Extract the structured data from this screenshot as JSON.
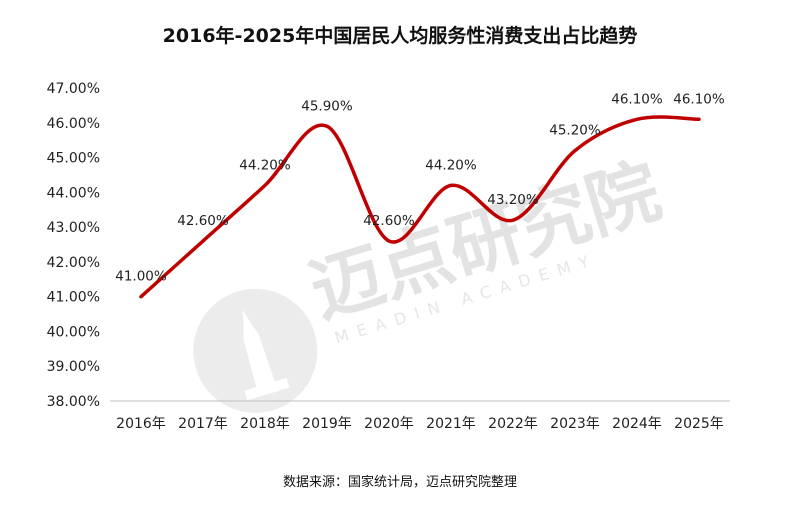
{
  "chart_data": {
    "type": "line",
    "title": "2016年-2025年中国居民人均服务性消费支出占比趋势",
    "categories": [
      "2016年",
      "2017年",
      "2018年",
      "2019年",
      "2020年",
      "2021年",
      "2022年",
      "2023年",
      "2024年",
      "2025年"
    ],
    "series": [
      {
        "values": [
          41.0,
          42.6,
          44.2,
          45.9,
          42.6,
          44.2,
          43.2,
          45.2,
          46.1,
          46.1
        ],
        "labels": [
          "41.00%",
          "42.60%",
          "44.20%",
          "45.90%",
          "42.60%",
          "44.20%",
          "43.20%",
          "45.20%",
          "46.10%",
          "46.10%"
        ],
        "color": "#c00000"
      }
    ],
    "ylim": [
      38,
      47
    ],
    "yticks": [
      "38.00%",
      "39.00%",
      "40.00%",
      "41.00%",
      "42.00%",
      "43.00%",
      "44.00%",
      "45.00%",
      "46.00%",
      "47.00%"
    ],
    "grid": false,
    "smooth": true
  },
  "source": "数据来源：国家统计局，迈点研究院整理",
  "watermark": {
    "cn": "迈点研究院",
    "en": "MEADIN ACADEMY"
  }
}
